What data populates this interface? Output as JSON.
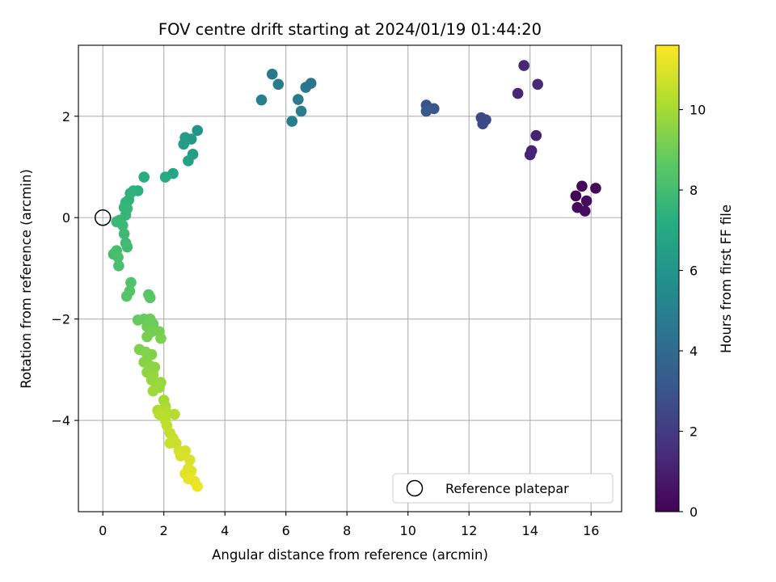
{
  "chart_data": {
    "type": "scatter",
    "title": "FOV centre drift starting at 2024/01/19 01:44:20",
    "xlabel": "Angular distance from reference (arcmin)",
    "ylabel": "Rotation from reference (arcmin)",
    "xlim": [
      -0.8,
      17.0
    ],
    "ylim": [
      -5.8,
      3.4
    ],
    "xticks": [
      0,
      2,
      4,
      6,
      8,
      10,
      12,
      14,
      16
    ],
    "yticks": [
      -4,
      -2,
      0,
      2
    ],
    "grid": true,
    "colormap": "viridis",
    "colorbar": {
      "label": "Hours from first FF file",
      "range": [
        0,
        11.6
      ],
      "ticks": [
        0,
        2,
        4,
        6,
        8,
        10
      ]
    },
    "legend": {
      "position": "bottom-right",
      "entries": [
        "Reference platepar"
      ]
    },
    "reference_point": {
      "x": 0,
      "y": 0,
      "label": "Reference platepar"
    },
    "series": [
      {
        "points": [
          {
            "x": 15.5,
            "y": 0.43,
            "hours": 0.1
          },
          {
            "x": 15.7,
            "y": 0.62,
            "hours": 0.2
          },
          {
            "x": 16.15,
            "y": 0.58,
            "hours": 0.25
          },
          {
            "x": 15.55,
            "y": 0.2,
            "hours": 0.3
          },
          {
            "x": 15.85,
            "y": 0.33,
            "hours": 0.35
          },
          {
            "x": 15.8,
            "y": 0.13,
            "hours": 0.4
          },
          {
            "x": 14.2,
            "y": 1.62,
            "hours": 1.1
          },
          {
            "x": 14.05,
            "y": 1.32,
            "hours": 1.15
          },
          {
            "x": 14.0,
            "y": 1.24,
            "hours": 1.2
          },
          {
            "x": 13.6,
            "y": 2.45,
            "hours": 1.25
          },
          {
            "x": 13.8,
            "y": 3.0,
            "hours": 1.3
          },
          {
            "x": 14.25,
            "y": 2.63,
            "hours": 1.35
          },
          {
            "x": 12.4,
            "y": 1.97,
            "hours": 2.5
          },
          {
            "x": 12.55,
            "y": 1.93,
            "hours": 2.55
          },
          {
            "x": 12.45,
            "y": 1.85,
            "hours": 2.6
          },
          {
            "x": 10.6,
            "y": 2.22,
            "hours": 3.0
          },
          {
            "x": 10.85,
            "y": 2.15,
            "hours": 3.1
          },
          {
            "x": 10.6,
            "y": 2.1,
            "hours": 3.2
          },
          {
            "x": 5.55,
            "y": 2.83,
            "hours": 4.7
          },
          {
            "x": 5.75,
            "y": 2.63,
            "hours": 4.8
          },
          {
            "x": 5.2,
            "y": 2.32,
            "hours": 5.0
          },
          {
            "x": 6.2,
            "y": 1.9,
            "hours": 4.9
          },
          {
            "x": 6.4,
            "y": 2.33,
            "hours": 4.8
          },
          {
            "x": 6.5,
            "y": 2.1,
            "hours": 4.9
          },
          {
            "x": 6.65,
            "y": 2.57,
            "hours": 4.6
          },
          {
            "x": 6.82,
            "y": 2.65,
            "hours": 4.5
          },
          {
            "x": 3.1,
            "y": 1.72,
            "hours": 6.0
          },
          {
            "x": 2.9,
            "y": 1.55,
            "hours": 6.2
          },
          {
            "x": 2.7,
            "y": 1.58,
            "hours": 6.3
          },
          {
            "x": 2.65,
            "y": 1.45,
            "hours": 6.4
          },
          {
            "x": 2.95,
            "y": 1.25,
            "hours": 6.5
          },
          {
            "x": 2.8,
            "y": 1.12,
            "hours": 6.6
          },
          {
            "x": 2.3,
            "y": 0.87,
            "hours": 6.8
          },
          {
            "x": 2.05,
            "y": 0.8,
            "hours": 7.0
          },
          {
            "x": 1.35,
            "y": 0.8,
            "hours": 7.2
          },
          {
            "x": 1.15,
            "y": 0.53,
            "hours": 7.3
          },
          {
            "x": 1.0,
            "y": 0.53,
            "hours": 7.35
          },
          {
            "x": 0.9,
            "y": 0.48,
            "hours": 7.4
          },
          {
            "x": 0.85,
            "y": 0.35,
            "hours": 7.45
          },
          {
            "x": 0.75,
            "y": 0.3,
            "hours": 7.5
          },
          {
            "x": 0.7,
            "y": 0.2,
            "hours": 7.55
          },
          {
            "x": 0.8,
            "y": 0.18,
            "hours": 7.6
          },
          {
            "x": 0.75,
            "y": 0.05,
            "hours": 7.65
          },
          {
            "x": 0.55,
            "y": -0.05,
            "hours": 7.7
          },
          {
            "x": 0.45,
            "y": -0.08,
            "hours": 7.75
          },
          {
            "x": 0.65,
            "y": -0.15,
            "hours": 7.8
          },
          {
            "x": 0.7,
            "y": -0.32,
            "hours": 7.85
          },
          {
            "x": 0.75,
            "y": -0.5,
            "hours": 7.9
          },
          {
            "x": 0.8,
            "y": -0.58,
            "hours": 7.95
          },
          {
            "x": 0.35,
            "y": -0.72,
            "hours": 8.0
          },
          {
            "x": 0.45,
            "y": -0.65,
            "hours": 8.05
          },
          {
            "x": 0.5,
            "y": -0.78,
            "hours": 8.1
          },
          {
            "x": 0.52,
            "y": -0.95,
            "hours": 8.15
          },
          {
            "x": 0.92,
            "y": -1.28,
            "hours": 8.3
          },
          {
            "x": 0.88,
            "y": -1.45,
            "hours": 8.4
          },
          {
            "x": 0.78,
            "y": -1.55,
            "hours": 8.45
          },
          {
            "x": 1.5,
            "y": -1.52,
            "hours": 8.5
          },
          {
            "x": 1.55,
            "y": -1.58,
            "hours": 8.55
          },
          {
            "x": 1.15,
            "y": -2.02,
            "hours": 8.8
          },
          {
            "x": 1.35,
            "y": -2.0,
            "hours": 8.85
          },
          {
            "x": 1.55,
            "y": -2.0,
            "hours": 8.9
          },
          {
            "x": 1.65,
            "y": -2.1,
            "hours": 8.95
          },
          {
            "x": 1.45,
            "y": -2.15,
            "hours": 9.0
          },
          {
            "x": 1.6,
            "y": -2.25,
            "hours": 9.05
          },
          {
            "x": 1.85,
            "y": -2.25,
            "hours": 9.1
          },
          {
            "x": 1.45,
            "y": -2.35,
            "hours": 9.15
          },
          {
            "x": 1.9,
            "y": -2.38,
            "hours": 9.2
          },
          {
            "x": 1.2,
            "y": -2.6,
            "hours": 9.3
          },
          {
            "x": 1.4,
            "y": -2.65,
            "hours": 9.35
          },
          {
            "x": 1.6,
            "y": -2.7,
            "hours": 9.4
          },
          {
            "x": 1.35,
            "y": -2.85,
            "hours": 9.45
          },
          {
            "x": 1.5,
            "y": -2.9,
            "hours": 9.5
          },
          {
            "x": 1.7,
            "y": -2.95,
            "hours": 9.55
          },
          {
            "x": 1.45,
            "y": -3.05,
            "hours": 9.6
          },
          {
            "x": 1.65,
            "y": -3.1,
            "hours": 9.65
          },
          {
            "x": 1.6,
            "y": -3.2,
            "hours": 9.7
          },
          {
            "x": 1.9,
            "y": -3.25,
            "hours": 9.75
          },
          {
            "x": 1.75,
            "y": -3.3,
            "hours": 9.8
          },
          {
            "x": 1.85,
            "y": -3.35,
            "hours": 9.85
          },
          {
            "x": 1.65,
            "y": -3.42,
            "hours": 9.9
          },
          {
            "x": 2.0,
            "y": -3.6,
            "hours": 10.0
          },
          {
            "x": 2.05,
            "y": -3.72,
            "hours": 10.1
          },
          {
            "x": 1.8,
            "y": -3.8,
            "hours": 10.15
          },
          {
            "x": 1.95,
            "y": -3.82,
            "hours": 10.2
          },
          {
            "x": 2.1,
            "y": -3.85,
            "hours": 10.25
          },
          {
            "x": 2.35,
            "y": -3.88,
            "hours": 10.3
          },
          {
            "x": 1.85,
            "y": -3.88,
            "hours": 10.35
          },
          {
            "x": 2.05,
            "y": -4.0,
            "hours": 10.4
          },
          {
            "x": 2.1,
            "y": -4.1,
            "hours": 10.45
          },
          {
            "x": 2.2,
            "y": -4.25,
            "hours": 10.55
          },
          {
            "x": 2.3,
            "y": -4.35,
            "hours": 10.6
          },
          {
            "x": 2.2,
            "y": -4.45,
            "hours": 10.65
          },
          {
            "x": 2.4,
            "y": -4.45,
            "hours": 10.7
          },
          {
            "x": 2.5,
            "y": -4.6,
            "hours": 10.8
          },
          {
            "x": 2.7,
            "y": -4.6,
            "hours": 10.85
          },
          {
            "x": 2.55,
            "y": -4.7,
            "hours": 10.9
          },
          {
            "x": 2.85,
            "y": -4.78,
            "hours": 10.95
          },
          {
            "x": 2.8,
            "y": -4.95,
            "hours": 11.0
          },
          {
            "x": 2.9,
            "y": -5.0,
            "hours": 11.05
          },
          {
            "x": 2.7,
            "y": -5.05,
            "hours": 11.1
          },
          {
            "x": 2.8,
            "y": -5.15,
            "hours": 11.15
          },
          {
            "x": 3.0,
            "y": -5.2,
            "hours": 11.2
          },
          {
            "x": 3.1,
            "y": -5.3,
            "hours": 11.3
          }
        ]
      }
    ]
  }
}
